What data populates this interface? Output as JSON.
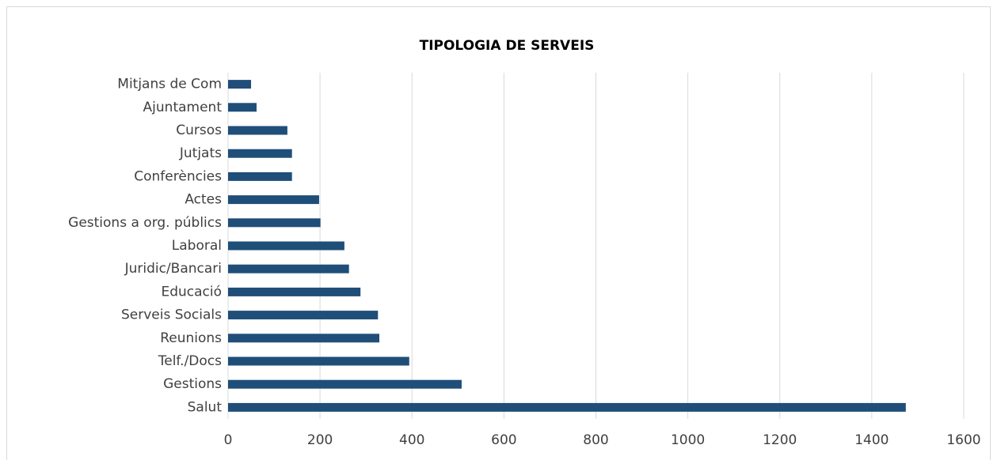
{
  "chart_data": {
    "type": "barh",
    "title": "TIPOLOGIA DE SERVEIS",
    "categories": [
      "Mitjans de Com",
      "Ajuntament",
      "Cursos",
      "Jutjats",
      "Conferències",
      "Actes",
      "Gestions a org. públics",
      "Laboral",
      "Juridic/Bancari",
      "Educació",
      "Serveis Socials",
      "Reunions",
      "Telf./Docs",
      "Gestions",
      "Salut"
    ],
    "values": [
      50,
      62,
      129,
      139,
      139,
      198,
      201,
      253,
      263,
      288,
      326,
      329,
      394,
      508,
      1474
    ],
    "color": "#1f4e79",
    "xlim": [
      0,
      1600
    ],
    "xticks": [
      0,
      200,
      400,
      600,
      800,
      1000,
      1200,
      1400,
      1600
    ],
    "grid": true
  }
}
